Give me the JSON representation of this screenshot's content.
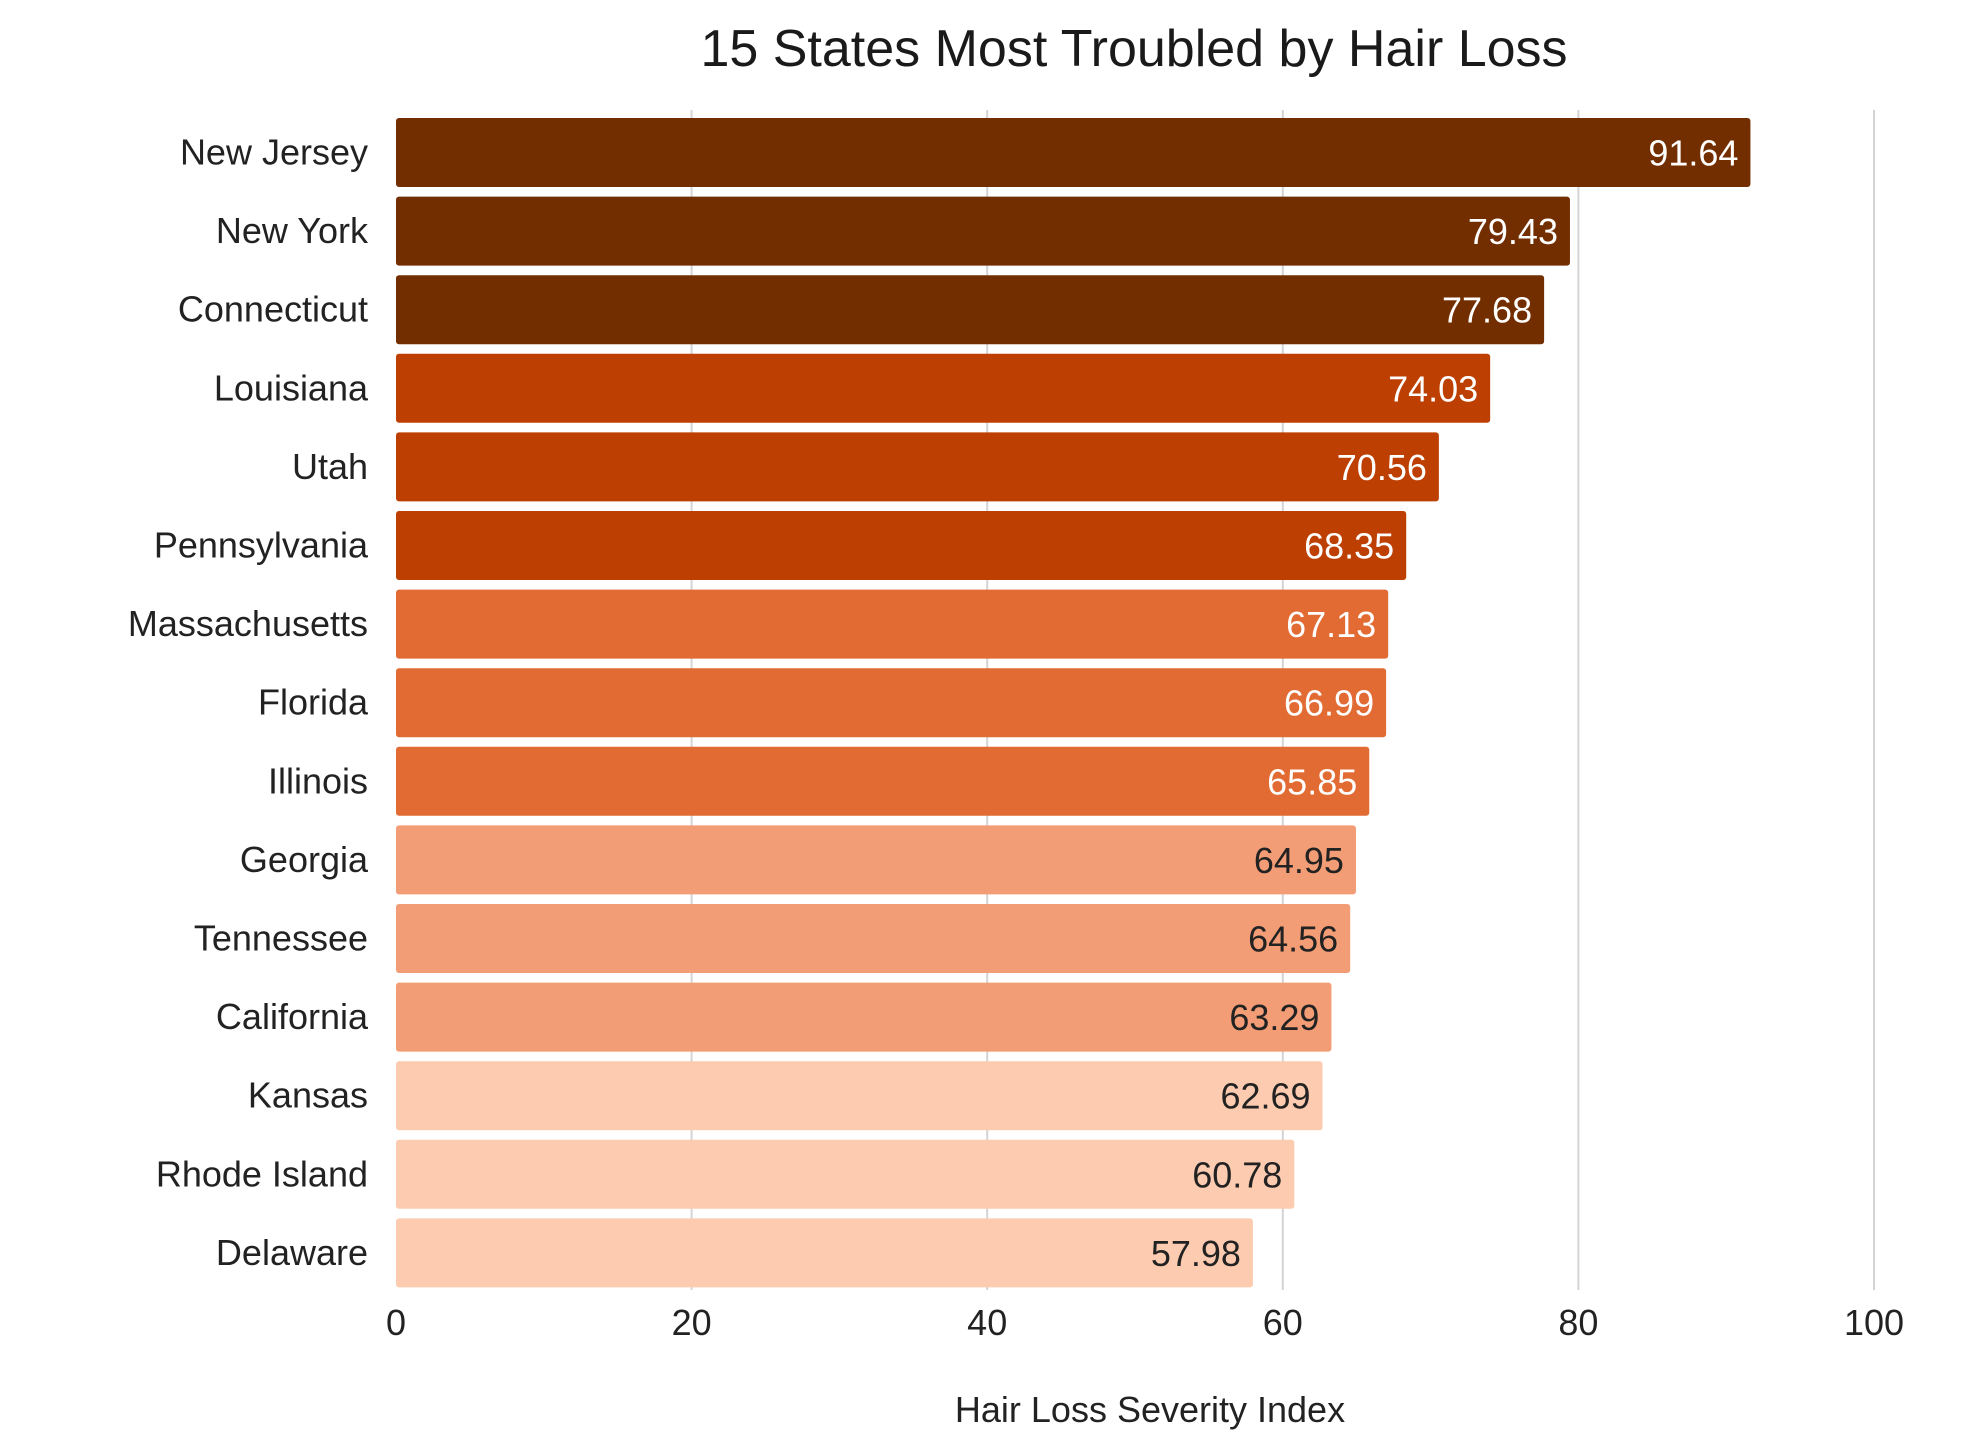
{
  "chart_data": {
    "type": "bar",
    "orientation": "horizontal",
    "title": "15 States Most Troubled by Hair Loss",
    "xlabel": "Hair Loss Severity Index",
    "ylabel": "",
    "xlim": [
      0,
      100
    ],
    "x_ticks": [
      0,
      20,
      40,
      60,
      80,
      100
    ],
    "grid": "vertical",
    "legend": "none",
    "categories": [
      "New Jersey",
      "New York",
      "Connecticut",
      "Louisiana",
      "Utah",
      "Pennsylvania",
      "Massachusetts",
      "Florida",
      "Illinois",
      "Georgia",
      "Tennessee",
      "California",
      "Kansas",
      "Rhode Island",
      "Delaware"
    ],
    "values": [
      91.64,
      79.43,
      77.68,
      74.03,
      70.56,
      68.35,
      67.13,
      66.99,
      65.85,
      64.95,
      64.56,
      63.29,
      62.69,
      60.78,
      57.98
    ],
    "value_labels": [
      "91.64",
      "79.43",
      "77.68",
      "74.03",
      "70.56",
      "68.35",
      "67.13",
      "66.99",
      "65.85",
      "64.95",
      "64.56",
      "63.29",
      "62.69",
      "60.78",
      "57.98"
    ],
    "bar_colors": [
      "#732e00",
      "#732e00",
      "#732e00",
      "#bd3f02",
      "#bd3f02",
      "#bd3f02",
      "#e26a33",
      "#e26a33",
      "#e26a33",
      "#f29d75",
      "#f29d75",
      "#f29d75",
      "#fdcbb0",
      "#fdcbb0",
      "#fdcbb0"
    ],
    "label_colors": [
      "#ffffff",
      "#ffffff",
      "#ffffff",
      "#ffffff",
      "#ffffff",
      "#ffffff",
      "#ffffff",
      "#ffffff",
      "#ffffff",
      "#222222",
      "#222222",
      "#222222",
      "#222222",
      "#222222",
      "#222222"
    ]
  }
}
